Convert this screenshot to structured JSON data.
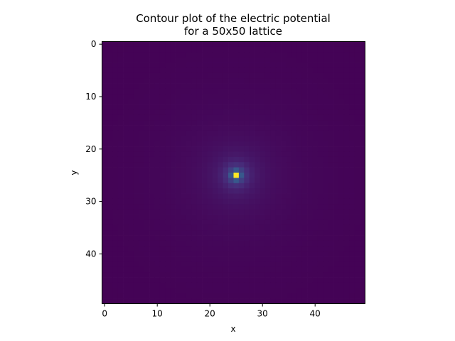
{
  "chart_data": {
    "type": "heatmap",
    "title_line1": "Contour plot of the electric potential",
    "title_line2": "for a 50x50 lattice",
    "xlabel": "x",
    "ylabel": "y",
    "grid_size": 50,
    "xlim": [
      -0.5,
      49.5
    ],
    "ylim": [
      49.5,
      -0.5
    ],
    "x_ticks": [
      0,
      10,
      20,
      30,
      40
    ],
    "y_ticks": [
      0,
      10,
      20,
      30,
      40
    ],
    "x_tick_labels": [
      "0",
      "10",
      "20",
      "30",
      "40"
    ],
    "y_tick_labels": [
      "0",
      "10",
      "20",
      "30",
      "40"
    ],
    "colormap": "viridis",
    "source_point": {
      "x": 25,
      "y": 25,
      "value": 1.0
    },
    "field_model": "1/r decay from central point charge",
    "grid": false
  }
}
